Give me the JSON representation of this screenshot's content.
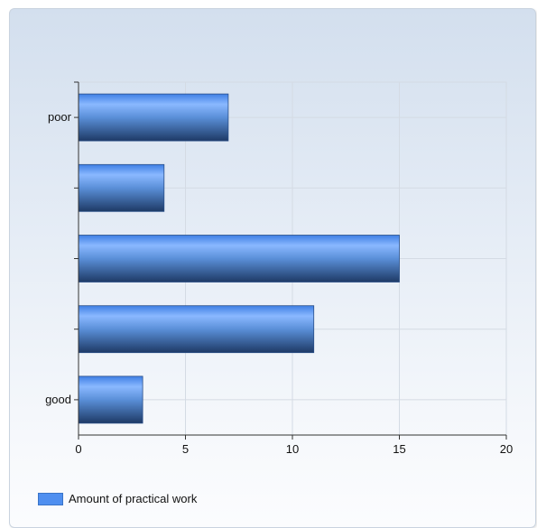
{
  "chart_data": {
    "type": "bar",
    "orientation": "horizontal",
    "categories": [
      "poor",
      "",
      "",
      "",
      "good"
    ],
    "series": [
      {
        "name": "Amount of practical work",
        "values": [
          7,
          4,
          15,
          11,
          3
        ]
      }
    ],
    "xlim": [
      0,
      20
    ],
    "x_ticks": [
      0,
      5,
      10,
      15,
      20
    ],
    "grid": true,
    "legend": "bottom-left",
    "colors": {
      "bar_light": "#8ab8ff",
      "bar_mid": "#4f8ff0",
      "bar_dark": "#1e3a66",
      "grid": "#d4dbe4",
      "axis": "#333333"
    }
  }
}
